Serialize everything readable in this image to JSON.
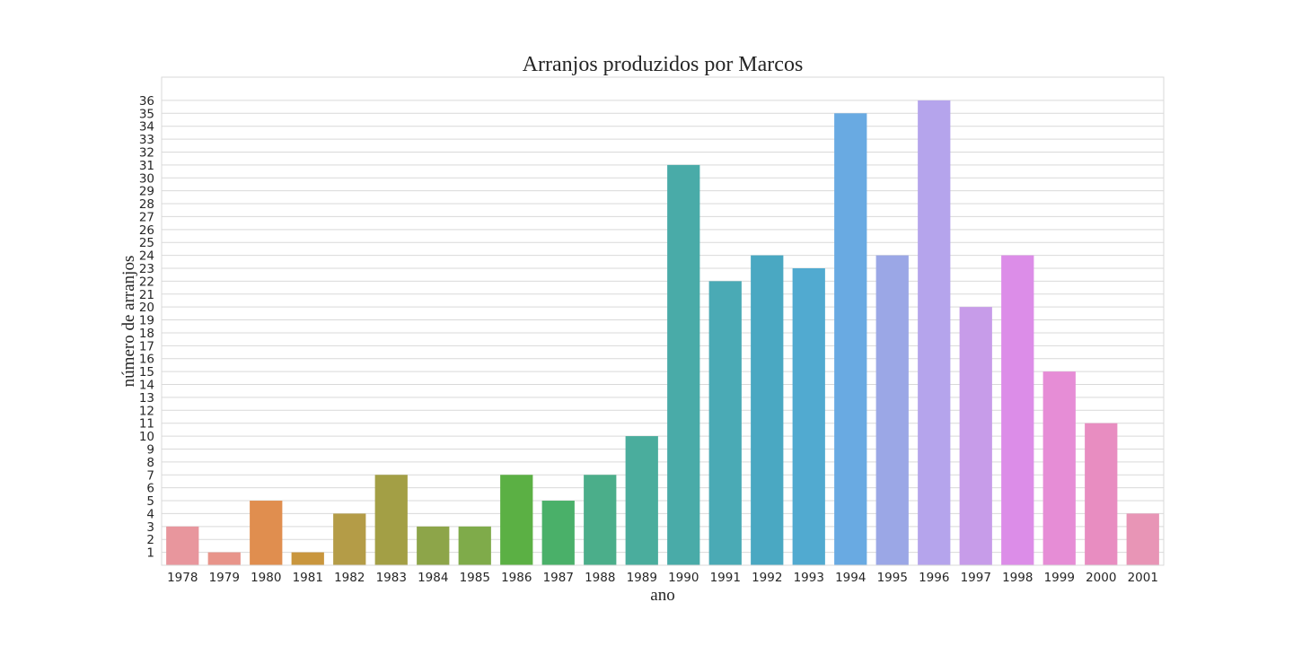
{
  "chart_data": {
    "type": "bar",
    "title": "Arranjos produzidos por Marcos",
    "xlabel": "ano",
    "ylabel": "número de arranjos",
    "categories": [
      "1978",
      "1979",
      "1980",
      "1981",
      "1982",
      "1983",
      "1984",
      "1985",
      "1986",
      "1987",
      "1988",
      "1989",
      "1990",
      "1991",
      "1992",
      "1993",
      "1994",
      "1995",
      "1996",
      "1997",
      "1998",
      "1999",
      "2000",
      "2001"
    ],
    "values": [
      3,
      1,
      5,
      1,
      4,
      7,
      3,
      3,
      7,
      5,
      7,
      10,
      31,
      22,
      24,
      23,
      35,
      24,
      36,
      20,
      24,
      15,
      11,
      4
    ],
    "colors": [
      "#e8969d",
      "#e8948a",
      "#e08e4f",
      "#c9963d",
      "#b49c47",
      "#a39f45",
      "#8da549",
      "#7fab4a",
      "#5bb044",
      "#4ab069",
      "#4bae8a",
      "#4aad9d",
      "#49aba8",
      "#4aaab5",
      "#4aa8c2",
      "#51aad0",
      "#69aae2",
      "#9ba7e6",
      "#b5a4ec",
      "#c79ce9",
      "#dc8de8",
      "#e68dd6",
      "#e88dc1",
      "#e895b6"
    ],
    "yticks": [
      1,
      2,
      3,
      4,
      5,
      6,
      7,
      8,
      9,
      10,
      11,
      12,
      13,
      14,
      15,
      16,
      17,
      18,
      19,
      20,
      21,
      22,
      23,
      24,
      25,
      26,
      27,
      28,
      29,
      30,
      31,
      32,
      33,
      34,
      35,
      36
    ],
    "ylim": [
      0,
      37.8
    ],
    "grid": true
  }
}
